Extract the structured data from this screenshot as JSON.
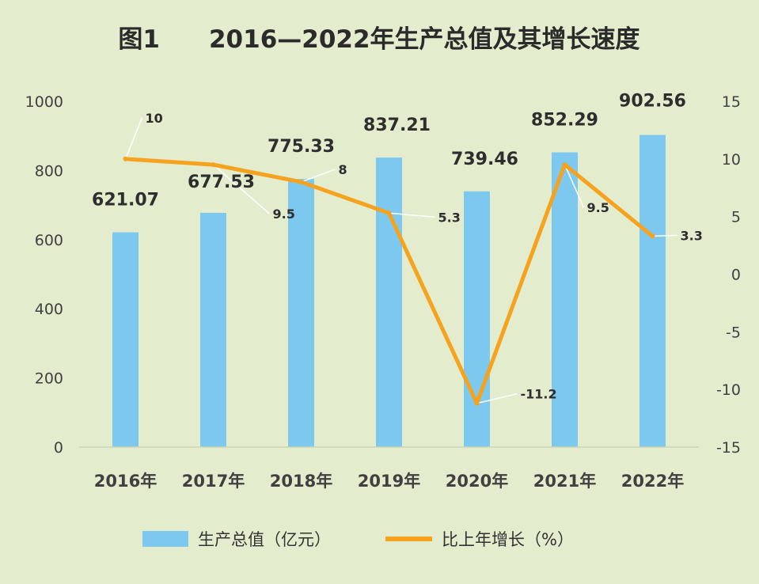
{
  "chart_data": {
    "type": "bar+line",
    "title": "图1　　2016—2022年生产总值及其增长速度",
    "categories": [
      "2016年",
      "2017年",
      "2018年",
      "2019年",
      "2020年",
      "2021年",
      "2022年"
    ],
    "series": [
      {
        "name": "生产总值（亿元）",
        "type": "bar",
        "axis": "left",
        "values": [
          621.07,
          677.53,
          775.33,
          837.21,
          739.46,
          852.29,
          902.56
        ],
        "labels": [
          "621.07",
          "677.53",
          "775.33",
          "837.21",
          "739.46",
          "852.29",
          "902.56"
        ],
        "color": "#7cc8ef"
      },
      {
        "name": "比上年增长（%）",
        "type": "line",
        "axis": "right",
        "values": [
          10,
          9.5,
          8,
          5.3,
          -11.2,
          9.5,
          3.3
        ],
        "labels": [
          "10",
          "9.5",
          "8",
          "5.3",
          "-11.2",
          "9.5",
          "3.3"
        ],
        "color": "#f5a21e"
      }
    ],
    "y_left": {
      "min": 0,
      "max": 1000,
      "ticks": [
        "0",
        "200",
        "400",
        "600",
        "800",
        "1000"
      ]
    },
    "y_right": {
      "min": -15,
      "max": 15,
      "ticks": [
        "-15",
        "-10",
        "-5",
        "0",
        "5",
        "10",
        "15"
      ]
    },
    "legend_position": "bottom",
    "grid": false,
    "colors": {
      "background": "#e3eccd",
      "bar": "#7cc8ef",
      "line": "#f5a21e",
      "leader": "#ffffff"
    }
  }
}
